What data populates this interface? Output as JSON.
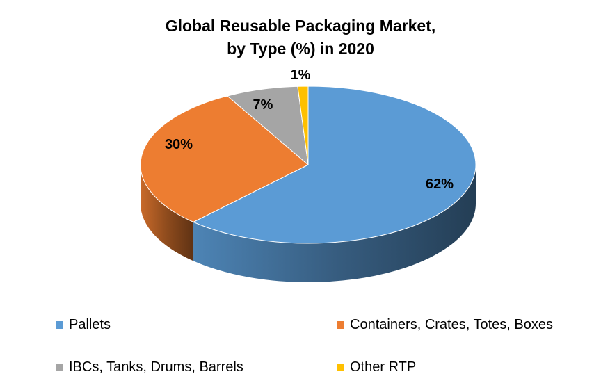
{
  "chart_data": {
    "type": "pie",
    "title_lines": [
      "Global Reusable Packaging Market,",
      "by Type (%) in 2020"
    ],
    "slices": [
      {
        "label": "Pallets",
        "value": 62,
        "data_label": "62%",
        "color": "#5B9BD5"
      },
      {
        "label": "Containers, Crates, Totes, Boxes",
        "value": 30,
        "data_label": "30%",
        "color": "#ED7D31"
      },
      {
        "label": "IBCs, Tanks, Drums, Barrels",
        "value": 7,
        "data_label": "7%",
        "color": "#A5A5A5"
      },
      {
        "label": "Other RTP",
        "value": 1,
        "data_label": "1%",
        "color": "#FFC000"
      }
    ],
    "style": "3d",
    "legend_position": "bottom"
  }
}
